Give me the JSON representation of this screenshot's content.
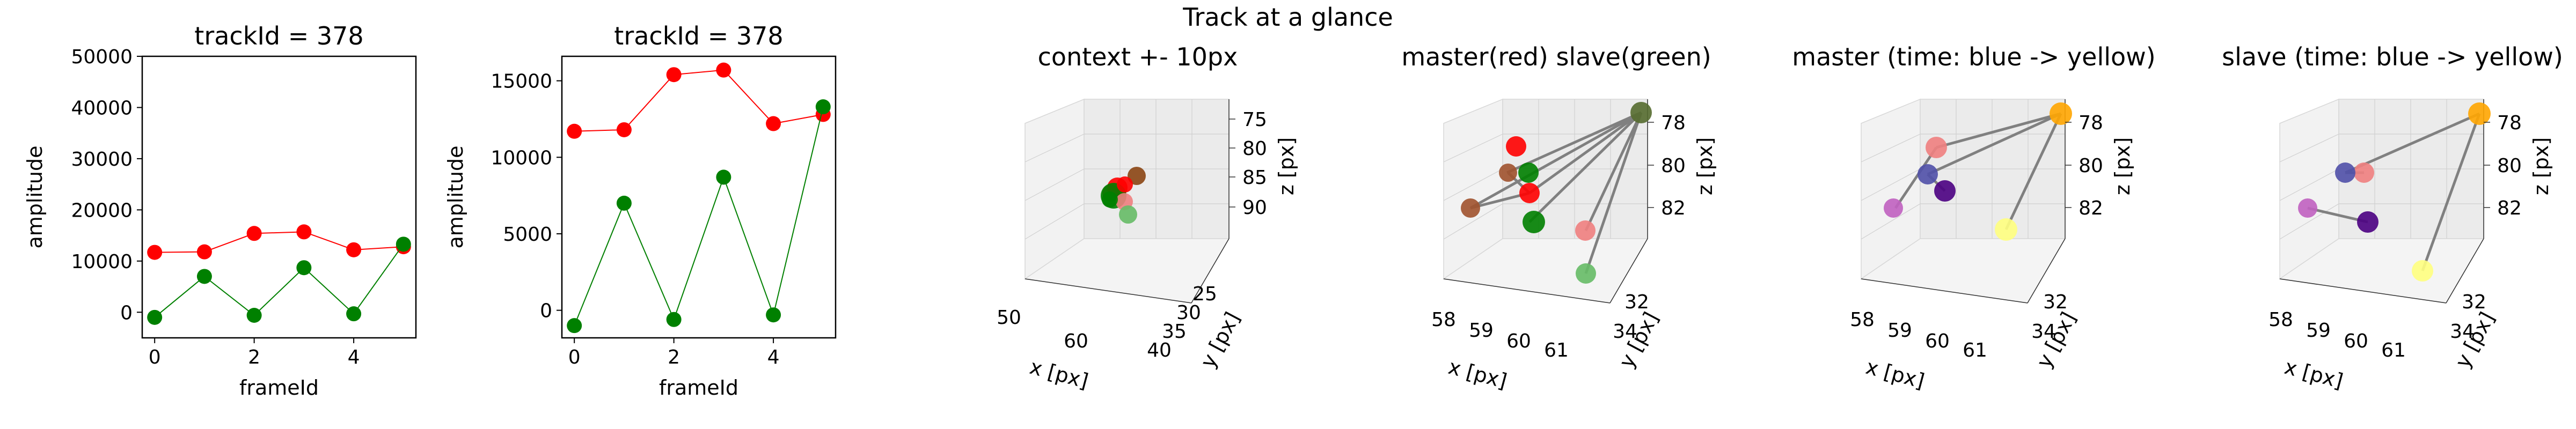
{
  "figure": {
    "suptitle": "Track at a glance"
  },
  "chart_data": [
    {
      "type": "line",
      "title": "trackId = 378",
      "xlabel": "frameId",
      "ylabel": "amplitude",
      "xlim": [
        -0.25,
        5.25
      ],
      "ylim": [
        -5000,
        50000
      ],
      "xticks": [
        0,
        2,
        4
      ],
      "yticks": [
        0,
        10000,
        20000,
        30000,
        40000,
        50000
      ],
      "x": [
        0,
        1,
        2,
        3,
        4,
        5
      ],
      "series": [
        {
          "color": "#ff0000",
          "values": [
            11700,
            11800,
            15400,
            15700,
            12200,
            12800
          ]
        },
        {
          "color": "#008000",
          "values": [
            -1000,
            7000,
            -600,
            8700,
            -300,
            13300
          ]
        }
      ]
    },
    {
      "type": "line",
      "title": "trackId = 378",
      "xlabel": "frameId",
      "ylabel": "amplitude",
      "xlim": [
        -0.25,
        5.25
      ],
      "ylim": [
        -1800,
        16600
      ],
      "xticks": [
        0,
        2,
        4
      ],
      "yticks": [
        0,
        5000,
        10000,
        15000
      ],
      "x": [
        0,
        1,
        2,
        3,
        4,
        5
      ],
      "series": [
        {
          "color": "#ff0000",
          "values": [
            11700,
            11800,
            15400,
            15700,
            12200,
            12800
          ]
        },
        {
          "color": "#008000",
          "values": [
            -1000,
            7000,
            -600,
            8700,
            -300,
            13300
          ]
        }
      ]
    },
    {
      "type": "scatter3d",
      "title": "context +- 10px",
      "xlabel": "x [px]",
      "ylabel": "y [px]",
      "zlabel": "z [px]",
      "xticks": [
        "50",
        "60"
      ],
      "yticks": [
        "25",
        "30",
        "35",
        "40"
      ],
      "zticks": [
        "75",
        "80",
        "85",
        "90"
      ],
      "points": [
        {
          "color": "#8b4513"
        },
        {
          "color": "#8b4513"
        },
        {
          "color": "#ff0000"
        },
        {
          "color": "#008000"
        },
        {
          "color": "#f08080"
        },
        {
          "color": "#66bb66"
        },
        {
          "color": "#ff0000"
        },
        {
          "color": "#008000"
        }
      ]
    },
    {
      "type": "scatter3d",
      "title": "master(red) slave(green)",
      "xlabel": "x [px]",
      "ylabel": "y [px]",
      "zlabel": "z [px]",
      "xticks": [
        "58",
        "59",
        "60",
        "61"
      ],
      "yticks": [
        "32",
        "34"
      ],
      "zticks": [
        "78",
        "80",
        "82"
      ],
      "points": [
        {
          "color": "#ff0000"
        },
        {
          "color": "#a0522d"
        },
        {
          "color": "#008000"
        },
        {
          "color": "#ff0000"
        },
        {
          "color": "#a0522d"
        },
        {
          "color": "#008000"
        },
        {
          "color": "#556b2f"
        },
        {
          "color": "#f08080"
        },
        {
          "color": "#66bb66"
        }
      ]
    },
    {
      "type": "scatter3d",
      "title": "master (time: blue -> yellow)",
      "xlabel": "x [px]",
      "ylabel": "y [px]",
      "zlabel": "z [px]",
      "xticks": [
        "58",
        "59",
        "60",
        "61"
      ],
      "yticks": [
        "32",
        "34"
      ],
      "zticks": [
        "78",
        "80",
        "82"
      ],
      "points": [
        {
          "color": "#f08080"
        },
        {
          "color": "#5050a8"
        },
        {
          "color": "#c060c0"
        },
        {
          "color": "#4b0082"
        },
        {
          "color": "#ffa500"
        },
        {
          "color": "#ffff80"
        }
      ]
    },
    {
      "type": "scatter3d",
      "title": "slave (time: blue -> yellow)",
      "xlabel": "x [px]",
      "ylabel": "y [px]",
      "zlabel": "z [px]",
      "xticks": [
        "58",
        "59",
        "60",
        "61"
      ],
      "yticks": [
        "32",
        "34"
      ],
      "zticks": [
        "78",
        "80",
        "82"
      ],
      "points": [
        {
          "color": "#f08080"
        },
        {
          "color": "#5050a8"
        },
        {
          "color": "#c060c0"
        },
        {
          "color": "#4b0082"
        },
        {
          "color": "#ffa500"
        },
        {
          "color": "#ffff80"
        }
      ]
    }
  ]
}
